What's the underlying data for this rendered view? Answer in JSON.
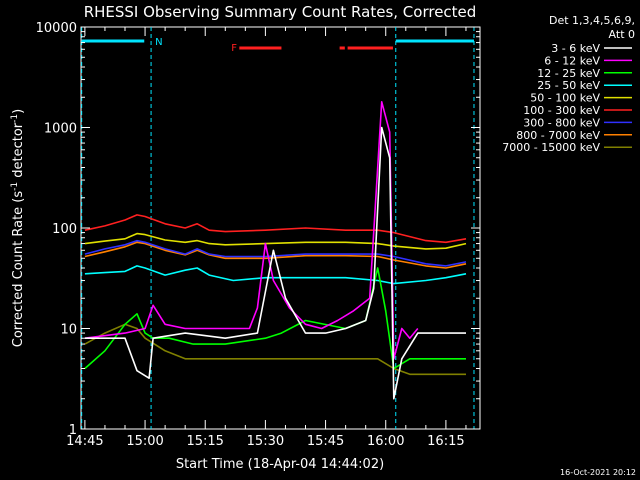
{
  "chart_data": {
    "type": "line",
    "title": "RHESSI Observing Summary Count Rates, Corrected",
    "xlabel": "Start Time (18-Apr-04 14:44:02)",
    "ylabel": "Corrected Count Rate (s⁻¹ detector⁻¹)",
    "ylabel_parts": [
      "Corrected Count Rate (s",
      "-1",
      " detector",
      "-1",
      ")"
    ],
    "y_scale": "log",
    "ylim": [
      1,
      10000
    ],
    "y_ticks": [
      {
        "value": 1,
        "label": "1"
      },
      {
        "value": 10,
        "label": "10"
      },
      {
        "value": 100,
        "label": "100"
      },
      {
        "value": 1000,
        "label": "1000"
      },
      {
        "value": 10000,
        "label": "10000"
      }
    ],
    "x_ticks": [
      {
        "minute": 45,
        "label": "14:45"
      },
      {
        "minute": 60,
        "label": "15:00"
      },
      {
        "minute": 75,
        "label": "15:15"
      },
      {
        "minute": 90,
        "label": "15:30"
      },
      {
        "minute": 105,
        "label": "15:45"
      },
      {
        "minute": 120,
        "label": "16:00"
      },
      {
        "minute": 135,
        "label": "16:15"
      }
    ],
    "grid": false,
    "legend_position": "right",
    "detectors_label": "Det 1,3,4,5,6,9,",
    "attenuator_label": "Att 0",
    "timestamp": "16-Oct-2021 20:12",
    "flag_labels": {
      "night": "N",
      "flare": "F"
    },
    "series": [
      {
        "name": "3 - 6 keV",
        "color": "#ffffff",
        "points": [
          [
            45,
            8
          ],
          [
            55,
            8
          ],
          [
            58,
            3.8
          ],
          [
            61,
            3.2
          ],
          [
            62,
            8
          ],
          [
            70,
            9
          ],
          [
            80,
            8
          ],
          [
            88,
            9
          ],
          [
            92,
            60
          ],
          [
            95,
            20
          ],
          [
            100,
            9
          ],
          [
            105,
            9
          ],
          [
            110,
            10
          ],
          [
            115,
            12
          ],
          [
            117,
            25
          ],
          [
            119,
            1000
          ],
          [
            121,
            500
          ],
          [
            122,
            2
          ],
          [
            124,
            5
          ],
          [
            128,
            9
          ],
          [
            140,
            9
          ]
        ]
      },
      {
        "name": "6 - 12 keV",
        "color": "#ff00ff",
        "points": [
          [
            45,
            8
          ],
          [
            55,
            9
          ],
          [
            60,
            10
          ],
          [
            62,
            17
          ],
          [
            65,
            11
          ],
          [
            70,
            10
          ],
          [
            80,
            10
          ],
          [
            86,
            10
          ],
          [
            88,
            16
          ],
          [
            90,
            70
          ],
          [
            92,
            30
          ],
          [
            96,
            16
          ],
          [
            100,
            11
          ],
          [
            104,
            10
          ],
          [
            108,
            12
          ],
          [
            112,
            15
          ],
          [
            116,
            20
          ],
          [
            119,
            1800
          ],
          [
            121,
            900
          ],
          [
            122,
            5
          ],
          [
            124,
            10
          ],
          [
            126,
            8
          ],
          [
            128,
            10
          ]
        ]
      },
      {
        "name": "12 - 25 keV",
        "color": "#00ff00",
        "points": [
          [
            45,
            4
          ],
          [
            50,
            6
          ],
          [
            55,
            11
          ],
          [
            58,
            14
          ],
          [
            60,
            9
          ],
          [
            62,
            8
          ],
          [
            66,
            8
          ],
          [
            72,
            7
          ],
          [
            80,
            7
          ],
          [
            90,
            8
          ],
          [
            94,
            9
          ],
          [
            100,
            12
          ],
          [
            110,
            10
          ],
          [
            115,
            12
          ],
          [
            118,
            40
          ],
          [
            120,
            15
          ],
          [
            122,
            4
          ],
          [
            126,
            5
          ],
          [
            130,
            5
          ],
          [
            140,
            5
          ]
        ]
      },
      {
        "name": "25 - 50 keV",
        "color": "#00ffff",
        "points": [
          [
            45,
            35
          ],
          [
            50,
            36
          ],
          [
            55,
            37
          ],
          [
            58,
            42
          ],
          [
            60,
            40
          ],
          [
            65,
            34
          ],
          [
            70,
            38
          ],
          [
            73,
            40
          ],
          [
            76,
            34
          ],
          [
            82,
            30
          ],
          [
            90,
            32
          ],
          [
            100,
            32
          ],
          [
            110,
            32
          ],
          [
            118,
            30
          ],
          [
            122,
            28
          ],
          [
            130,
            30
          ],
          [
            135,
            32
          ],
          [
            140,
            35
          ]
        ]
      },
      {
        "name": "50 - 100 keV",
        "color": "#e0e000",
        "points": [
          [
            45,
            70
          ],
          [
            50,
            74
          ],
          [
            55,
            78
          ],
          [
            58,
            88
          ],
          [
            60,
            86
          ],
          [
            65,
            76
          ],
          [
            70,
            72
          ],
          [
            73,
            75
          ],
          [
            76,
            70
          ],
          [
            80,
            68
          ],
          [
            90,
            70
          ],
          [
            100,
            72
          ],
          [
            110,
            72
          ],
          [
            118,
            70
          ],
          [
            122,
            66
          ],
          [
            130,
            62
          ],
          [
            135,
            63
          ],
          [
            140,
            70
          ]
        ]
      },
      {
        "name": "100 - 300 keV",
        "color": "#ff2020",
        "points": [
          [
            45,
            95
          ],
          [
            50,
            105
          ],
          [
            55,
            120
          ],
          [
            58,
            135
          ],
          [
            60,
            130
          ],
          [
            65,
            110
          ],
          [
            70,
            100
          ],
          [
            73,
            110
          ],
          [
            76,
            95
          ],
          [
            80,
            92
          ],
          [
            90,
            95
          ],
          [
            100,
            100
          ],
          [
            110,
            95
          ],
          [
            118,
            95
          ],
          [
            122,
            90
          ],
          [
            130,
            75
          ],
          [
            135,
            72
          ],
          [
            140,
            78
          ]
        ]
      },
      {
        "name": "300 - 800 keV",
        "color": "#3030ff",
        "points": [
          [
            45,
            55
          ],
          [
            50,
            62
          ],
          [
            55,
            68
          ],
          [
            58,
            75
          ],
          [
            60,
            72
          ],
          [
            65,
            62
          ],
          [
            70,
            55
          ],
          [
            73,
            62
          ],
          [
            76,
            55
          ],
          [
            80,
            52
          ],
          [
            90,
            52
          ],
          [
            100,
            55
          ],
          [
            110,
            55
          ],
          [
            118,
            55
          ],
          [
            122,
            52
          ],
          [
            130,
            44
          ],
          [
            135,
            42
          ],
          [
            140,
            46
          ]
        ]
      },
      {
        "name": "800 - 7000 keV",
        "color": "#ff8000",
        "points": [
          [
            45,
            52
          ],
          [
            50,
            58
          ],
          [
            55,
            65
          ],
          [
            58,
            72
          ],
          [
            60,
            70
          ],
          [
            65,
            60
          ],
          [
            70,
            54
          ],
          [
            73,
            60
          ],
          [
            76,
            54
          ],
          [
            80,
            50
          ],
          [
            90,
            50
          ],
          [
            100,
            53
          ],
          [
            110,
            53
          ],
          [
            118,
            52
          ],
          [
            122,
            48
          ],
          [
            130,
            42
          ],
          [
            135,
            40
          ],
          [
            140,
            44
          ]
        ]
      },
      {
        "name": "7000 - 15000 keV",
        "color": "#808000",
        "points": [
          [
            45,
            7
          ],
          [
            50,
            9
          ],
          [
            55,
            11
          ],
          [
            58,
            10
          ],
          [
            60,
            8
          ],
          [
            65,
            6
          ],
          [
            70,
            5
          ],
          [
            80,
            5
          ],
          [
            90,
            5
          ],
          [
            100,
            5
          ],
          [
            110,
            5
          ],
          [
            118,
            5
          ],
          [
            122,
            4
          ],
          [
            126,
            3.5
          ],
          [
            130,
            3.5
          ],
          [
            140,
            3.5
          ]
        ]
      }
    ]
  }
}
